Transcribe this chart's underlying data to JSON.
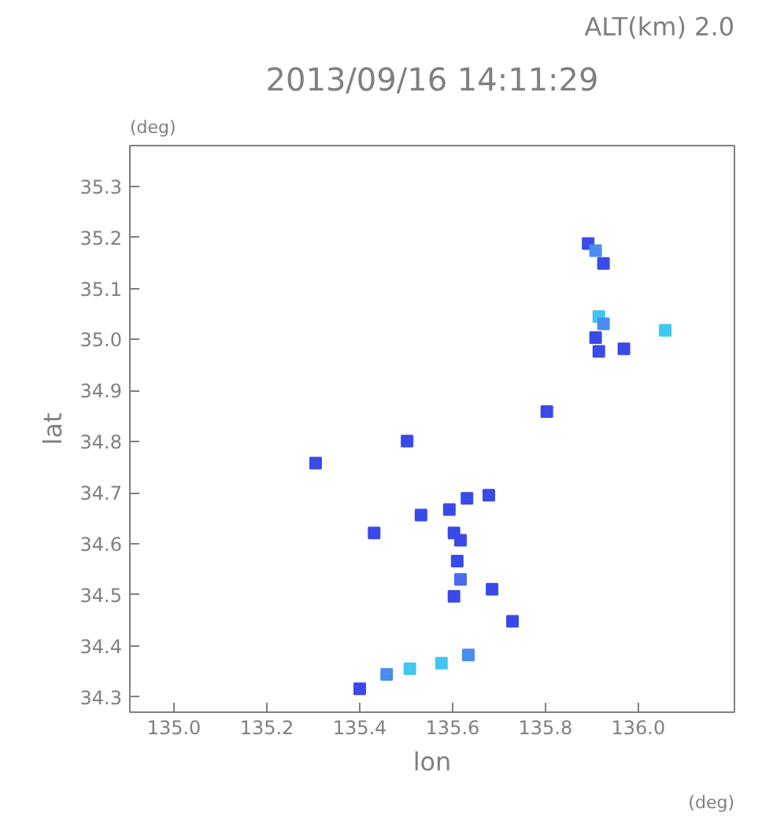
{
  "chart_data": {
    "type": "scatter",
    "title": "2013/09/16 14:11:29",
    "xlabel": "lon",
    "ylabel": "lat",
    "annotations": [
      "ALT(km) 2.0",
      "(deg)",
      "(deg)"
    ],
    "x": [
      135.892,
      135.908,
      135.925,
      135.915,
      135.925,
      135.908,
      135.915,
      135.969,
      136.058,
      135.803,
      135.502,
      135.305,
      135.431,
      135.532,
      135.593,
      135.631,
      135.678,
      135.603,
      135.617,
      135.61,
      135.617,
      135.603,
      135.685,
      135.729,
      135.634,
      135.576,
      135.508,
      135.458,
      135.4
    ],
    "values": [
      35.188,
      35.174,
      35.149,
      35.045,
      35.031,
      35.004,
      34.977,
      34.982,
      35.018,
      34.859,
      34.801,
      34.758,
      34.621,
      34.656,
      34.667,
      34.689,
      34.695,
      34.621,
      34.607,
      34.566,
      34.53,
      34.497,
      34.511,
      34.448,
      34.382,
      34.366,
      34.355,
      34.344,
      34.316
    ],
    "colors": [
      "#3a4ae8",
      "#4a8cf0",
      "#3a4ae8",
      "#40c8f0",
      "#4a8cf0",
      "#3a4ae8",
      "#3a4ae8",
      "#3a4ae8",
      "#40c8f0",
      "#3a4ae8",
      "#3a4ae8",
      "#3a4ae8",
      "#3a4ae8",
      "#3a4ae8",
      "#3a4ae8",
      "#3a4ae8",
      "#3a4ae8",
      "#3a4ae8",
      "#3a4ae8",
      "#3a4ae8",
      "#4a6cf0",
      "#3a4ae8",
      "#3a4ae8",
      "#3a4ae8",
      "#4a8cf0",
      "#40c8f0",
      "#40c8f0",
      "#4a8cf0",
      "#3a4ae8"
    ],
    "marker": "square",
    "grid": false,
    "xlim": [
      134.905,
      136.207
    ],
    "ylim": [
      34.27,
      35.38
    ],
    "xticks": [
      {
        "value": 135.0,
        "label": "135.0"
      },
      {
        "value": 135.2,
        "label": "135.2"
      },
      {
        "value": 135.4,
        "label": "135.4"
      },
      {
        "value": 135.6,
        "label": "135.6"
      },
      {
        "value": 135.8,
        "label": "135.8"
      },
      {
        "value": 136.0,
        "label": "136.0"
      }
    ],
    "yticks": [
      {
        "value": 34.3,
        "label": "34.3"
      },
      {
        "value": 34.4,
        "label": "34.4"
      },
      {
        "value": 34.5,
        "label": "34.5"
      },
      {
        "value": 34.6,
        "label": "34.6"
      },
      {
        "value": 34.7,
        "label": "34.7"
      },
      {
        "value": 34.8,
        "label": "34.8"
      },
      {
        "value": 34.9,
        "label": "34.9"
      },
      {
        "value": 35.0,
        "label": "35.0"
      },
      {
        "value": 35.1,
        "label": "35.1"
      },
      {
        "value": 35.2,
        "label": "35.2"
      },
      {
        "value": 35.3,
        "label": "35.3"
      }
    ]
  }
}
